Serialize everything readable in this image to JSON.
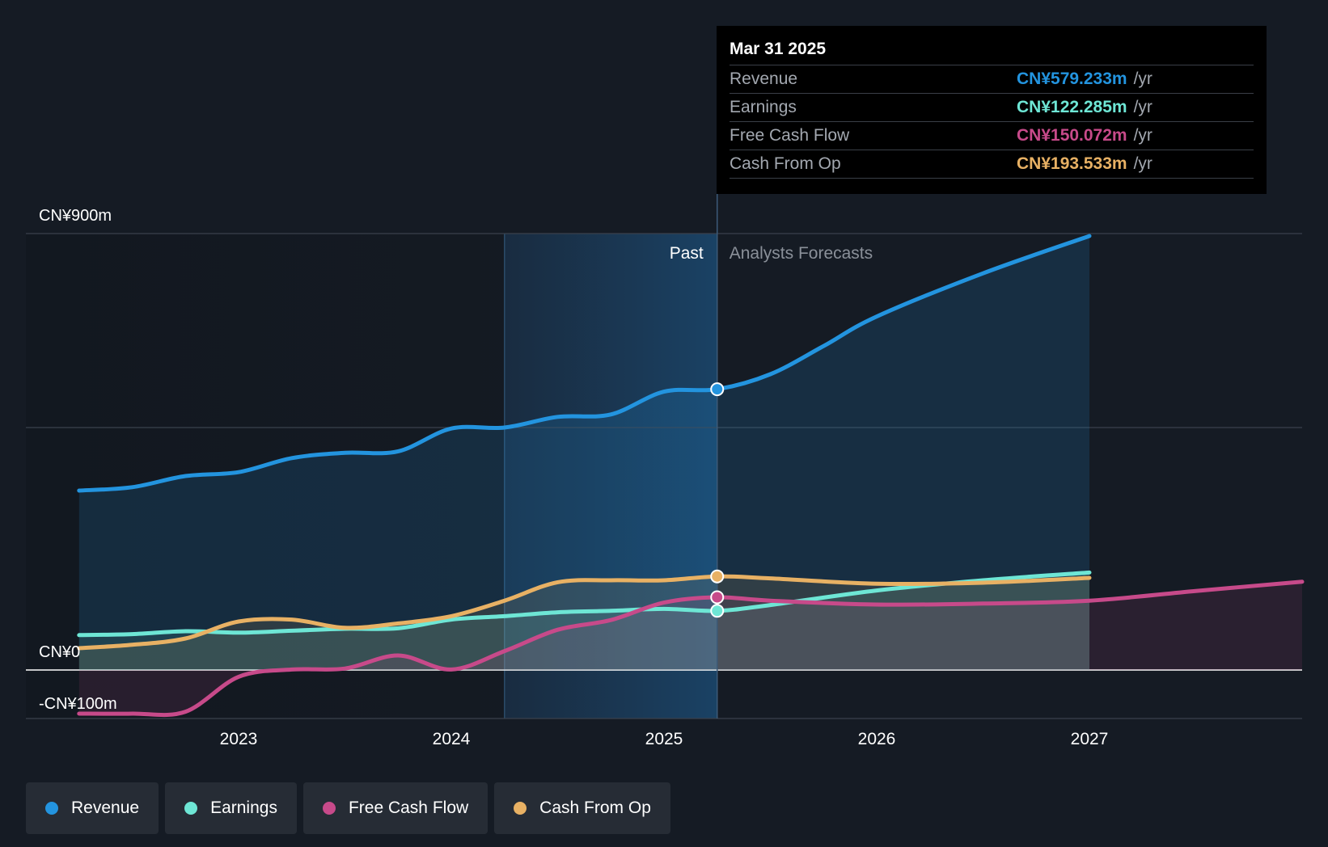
{
  "colors": {
    "background": "#151b24",
    "revenue": "#2394df",
    "earnings": "#6ee6d5",
    "free_cash_flow": "#c74a8a",
    "cash_from_op": "#e8b164",
    "past_band": "#1a3550"
  },
  "chart_data": {
    "type": "line",
    "title": "",
    "xlabel": "",
    "ylabel": "",
    "x_ticks": [
      "2023",
      "2024",
      "2025",
      "2026",
      "2027"
    ],
    "x_tick_values": [
      2023.0,
      2024.0,
      2025.0,
      2026.0,
      2027.0
    ],
    "xlim": [
      2022.0,
      2028.0
    ],
    "ylim": [
      -100,
      900
    ],
    "y_labels": [
      "CN¥900m",
      "CN¥0",
      "-CN¥100m"
    ],
    "y_label_values": [
      900,
      0,
      -100
    ],
    "gridlines": [
      900,
      500,
      0,
      -100
    ],
    "past_label": "Past",
    "forecast_label": "Analysts Forecasts",
    "past_band_start": 2024.25,
    "divider_x": 2025.25,
    "series": [
      {
        "name": "Revenue",
        "points": [
          [
            2022.25,
            370
          ],
          [
            2022.5,
            377
          ],
          [
            2022.75,
            400
          ],
          [
            2023.0,
            408
          ],
          [
            2023.25,
            437
          ],
          [
            2023.5,
            448
          ],
          [
            2023.75,
            451
          ],
          [
            2024.0,
            498
          ],
          [
            2024.25,
            500
          ],
          [
            2024.5,
            522
          ],
          [
            2024.75,
            527
          ],
          [
            2025.0,
            574
          ],
          [
            2025.25,
            579
          ],
          [
            2025.5,
            610
          ],
          [
            2025.75,
            668
          ],
          [
            2026.0,
            729
          ],
          [
            2026.5,
            818
          ],
          [
            2027.0,
            895
          ]
        ]
      },
      {
        "name": "Earnings",
        "points": [
          [
            2022.25,
            72
          ],
          [
            2022.5,
            74
          ],
          [
            2022.75,
            80
          ],
          [
            2023.0,
            77
          ],
          [
            2023.25,
            81
          ],
          [
            2023.5,
            85
          ],
          [
            2023.75,
            86
          ],
          [
            2024.0,
            104
          ],
          [
            2024.25,
            111
          ],
          [
            2024.5,
            119
          ],
          [
            2024.75,
            122
          ],
          [
            2025.0,
            126
          ],
          [
            2025.25,
            122
          ],
          [
            2025.5,
            134
          ],
          [
            2026.0,
            164
          ],
          [
            2026.5,
            185
          ],
          [
            2027.0,
            201
          ]
        ]
      },
      {
        "name": "Free Cash Flow",
        "points": [
          [
            2022.25,
            -90
          ],
          [
            2022.5,
            -90
          ],
          [
            2022.75,
            -86
          ],
          [
            2023.0,
            -14
          ],
          [
            2023.25,
            1
          ],
          [
            2023.5,
            3
          ],
          [
            2023.75,
            30
          ],
          [
            2024.0,
            1
          ],
          [
            2024.25,
            39
          ],
          [
            2024.5,
            83
          ],
          [
            2024.75,
            103
          ],
          [
            2025.0,
            139
          ],
          [
            2025.25,
            150
          ],
          [
            2025.5,
            143
          ],
          [
            2026.0,
            135
          ],
          [
            2026.5,
            137
          ],
          [
            2027.0,
            143
          ],
          [
            2027.5,
            163
          ],
          [
            2028.0,
            182
          ]
        ]
      },
      {
        "name": "Cash From Op",
        "points": [
          [
            2022.25,
            45
          ],
          [
            2022.5,
            52
          ],
          [
            2022.75,
            65
          ],
          [
            2023.0,
            100
          ],
          [
            2023.25,
            104
          ],
          [
            2023.5,
            87
          ],
          [
            2023.75,
            96
          ],
          [
            2024.0,
            111
          ],
          [
            2024.25,
            143
          ],
          [
            2024.5,
            181
          ],
          [
            2024.75,
            185
          ],
          [
            2025.0,
            185
          ],
          [
            2025.25,
            193
          ],
          [
            2025.5,
            189
          ],
          [
            2026.0,
            178
          ],
          [
            2026.5,
            180
          ],
          [
            2027.0,
            190
          ]
        ]
      }
    ]
  },
  "tooltip": {
    "date": "Mar 31 2025",
    "rows": [
      {
        "label": "Revenue",
        "value": "CN¥579.233m",
        "unit": "/yr"
      },
      {
        "label": "Earnings",
        "value": "CN¥122.285m",
        "unit": "/yr"
      },
      {
        "label": "Free Cash Flow",
        "value": "CN¥150.072m",
        "unit": "/yr"
      },
      {
        "label": "Cash From Op",
        "value": "CN¥193.533m",
        "unit": "/yr"
      }
    ]
  },
  "legend": [
    {
      "label": "Revenue"
    },
    {
      "label": "Earnings"
    },
    {
      "label": "Free Cash Flow"
    },
    {
      "label": "Cash From Op"
    }
  ]
}
